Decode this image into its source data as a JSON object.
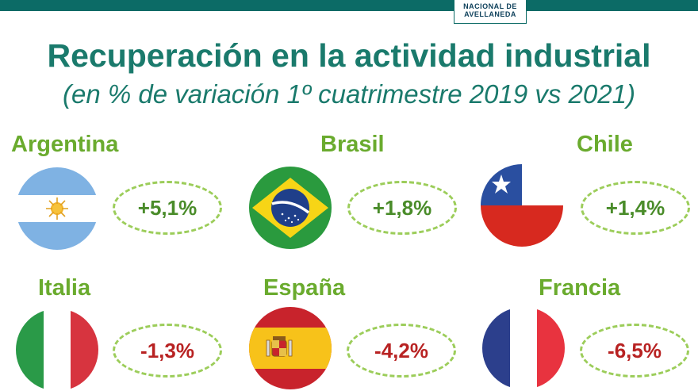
{
  "header": {
    "logo_line1": "NACIONAL DE",
    "logo_line2": "AVELLANEDA"
  },
  "title": "Recuperación en la actividad industrial",
  "subtitle": "(en % de variación 1º cuatrimestre 2019 vs 2021)",
  "countries": [
    {
      "name": "Argentina",
      "value": "+5,1%",
      "flag": "argentina-flag"
    },
    {
      "name": "Brasil",
      "value": "+1,8%",
      "flag": "brazil-flag"
    },
    {
      "name": "Chile",
      "value": "+1,4%",
      "flag": "chile-flag"
    },
    {
      "name": "Italia",
      "value": "-1,3%",
      "flag": "italy-flag"
    },
    {
      "name": "España",
      "value": "-4,2%",
      "flag": "spain-flag"
    },
    {
      "name": "Francia",
      "value": "-6,5%",
      "flag": "france-flag"
    }
  ],
  "colors": {
    "brand": "#0c6b66",
    "title": "#1a7a6c",
    "country_name": "#6aab2e",
    "positive": "#4a8c2a",
    "negative": "#b82222",
    "pill_border": "#9ccd5a"
  }
}
